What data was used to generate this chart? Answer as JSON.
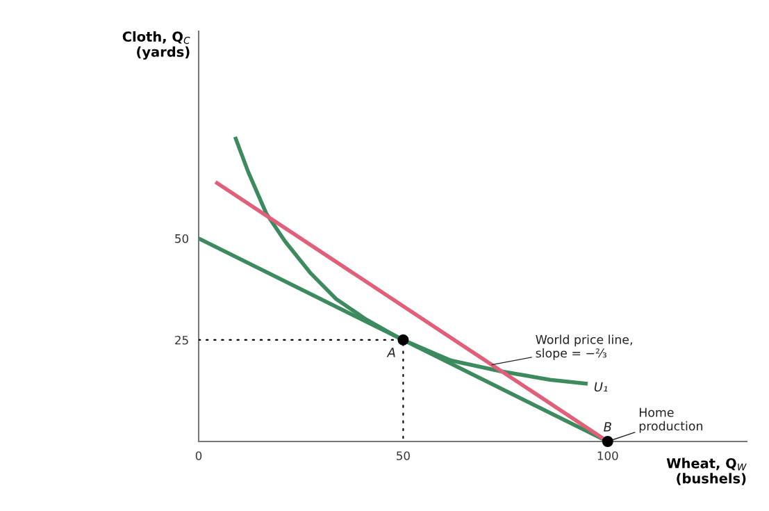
{
  "chart_data": {
    "type": "line",
    "xlabel": "Wheat, Q$_{W}$\n(bushels)",
    "ylabel": "Cloth, Q$_{C}$\n(yards)",
    "xlim": [
      0,
      134
    ],
    "ylim": [
      0,
      101
    ],
    "xticks": [
      0,
      50,
      100
    ],
    "yticks": [
      25,
      50
    ],
    "grid": false,
    "legend": false,
    "series": [
      {
        "color": "#3d8a5f",
        "x": [
          0,
          100
        ],
        "values": [
          50,
          0
        ]
      },
      {
        "name": "U₁",
        "color": "#3d8a5f",
        "x": [
          8.9,
          12.1,
          16.5,
          21.1,
          27.4,
          33.6,
          41.0,
          47.2,
          50,
          61.5,
          73.8,
          85.9,
          95.1
        ],
        "values": [
          75.0,
          66.4,
          56.2,
          49.3,
          41.4,
          35.1,
          30.0,
          26.5,
          25,
          20.0,
          17.3,
          15.2,
          14.2
        ]
      },
      {
        "color": "#e0607a",
        "x": [
          4.1,
          100
        ],
        "values": [
          63.9,
          0
        ]
      },
      {
        "line_style": "dotted",
        "color": "#000000",
        "x": [
          0,
          50,
          50
        ],
        "values": [
          25,
          25,
          0
        ]
      },
      {
        "type": "scatter",
        "marker": "circle",
        "color": "#000000",
        "x": [
          50,
          100
        ],
        "values": [
          25,
          0
        ]
      }
    ],
    "annotations": [
      {
        "text": "A",
        "x": 50,
        "y": 25
      },
      {
        "text": "B",
        "x": 100,
        "y": 0
      },
      {
        "text": "World price line,\nslope = −⅔",
        "x": 71.7,
        "y": 18.9
      },
      {
        "text": "Home\nproduction",
        "x": 100,
        "y": 0
      }
    ]
  }
}
